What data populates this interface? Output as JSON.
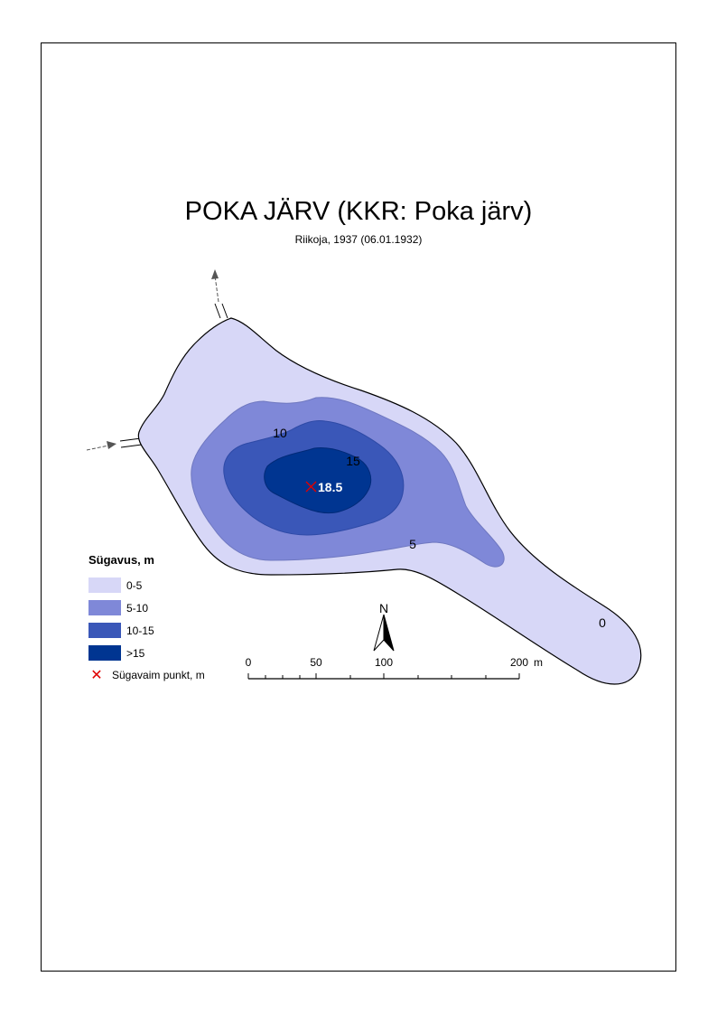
{
  "title": "POKA JÄRV (KKR: Poka järv)",
  "subtitle": "Riikoja, 1937 (06.01.1932)",
  "colors": {
    "zone_0_5": "#d7d7f7",
    "zone_5_10": "#7f88d8",
    "zone_10_15": "#3a57b8",
    "zone_15": "#003591",
    "deepest_marker": "#e00000"
  },
  "contour_labels": {
    "c0": "0",
    "c5": "5",
    "c10": "10",
    "c15": "15"
  },
  "deepest_point": {
    "value": "18.5"
  },
  "legend": {
    "title": "Sügavus, m",
    "items": [
      {
        "label": "0-5",
        "color": "#d7d7f7"
      },
      {
        "label": "5-10",
        "color": "#7f88d8"
      },
      {
        "label": "10-15",
        "color": "#3a57b8"
      },
      {
        "label": ">15",
        "color": "#003591"
      }
    ],
    "deepest_label": "Sügavaim punkt, m",
    "deepest_icon": "red-x-icon"
  },
  "scale_bar": {
    "labels": [
      "0",
      "50",
      "100",
      "200"
    ],
    "unit": "m"
  },
  "north_arrow": {
    "label": "N",
    "icon": "north-arrow-icon"
  }
}
